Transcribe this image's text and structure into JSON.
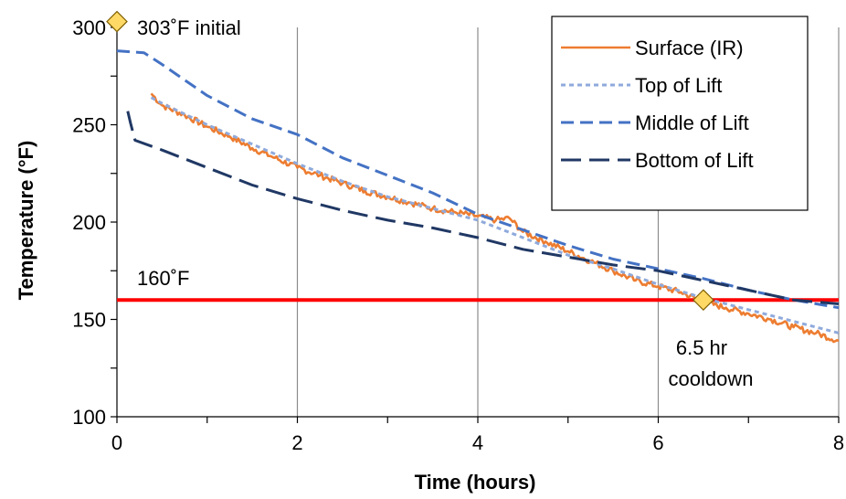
{
  "chart_data": {
    "type": "line",
    "title": "",
    "xlabel": "Time (hours)",
    "ylabel": "Temperature (°F)",
    "xlim": [
      0,
      8
    ],
    "ylim": [
      100,
      300
    ],
    "x_ticks": [
      "0",
      "2",
      "4",
      "6",
      "8"
    ],
    "y_ticks": [
      "100",
      "150",
      "200",
      "250",
      "300"
    ],
    "grid": "vertical",
    "legend_position": "top-right",
    "series": [
      {
        "name": "Surface (IR)",
        "color": "#ED7D31",
        "style": "solid-noisy",
        "points": [
          [
            0.38,
            266
          ],
          [
            0.5,
            260
          ],
          [
            0.75,
            255
          ],
          [
            1.0,
            249
          ],
          [
            1.25,
            244
          ],
          [
            1.5,
            238
          ],
          [
            1.75,
            233
          ],
          [
            2.0,
            228
          ],
          [
            2.25,
            224
          ],
          [
            2.5,
            220
          ],
          [
            2.75,
            216
          ],
          [
            3.0,
            213
          ],
          [
            3.25,
            210
          ],
          [
            3.5,
            207
          ],
          [
            3.75,
            205
          ],
          [
            4.0,
            203
          ],
          [
            4.2,
            201
          ],
          [
            4.35,
            202
          ],
          [
            4.5,
            195
          ],
          [
            4.75,
            190
          ],
          [
            5.0,
            185
          ],
          [
            5.25,
            180
          ],
          [
            5.5,
            175
          ],
          [
            5.75,
            170
          ],
          [
            6.0,
            167
          ],
          [
            6.25,
            164
          ],
          [
            6.5,
            159
          ],
          [
            6.75,
            156
          ],
          [
            7.0,
            153
          ],
          [
            7.25,
            150
          ],
          [
            7.5,
            146
          ],
          [
            7.75,
            143
          ],
          [
            8.0,
            139
          ]
        ]
      },
      {
        "name": "Top of Lift",
        "color": "#8FAADC",
        "style": "dotted",
        "points": [
          [
            0.38,
            264
          ],
          [
            0.5,
            261
          ],
          [
            1.0,
            250
          ],
          [
            1.5,
            240
          ],
          [
            2.0,
            230
          ],
          [
            2.5,
            221
          ],
          [
            3.0,
            213
          ],
          [
            3.5,
            207
          ],
          [
            4.0,
            201
          ],
          [
            4.5,
            192
          ],
          [
            5.0,
            183
          ],
          [
            5.5,
            176
          ],
          [
            6.0,
            168
          ],
          [
            6.5,
            161
          ],
          [
            7.0,
            155
          ],
          [
            7.5,
            149
          ],
          [
            8.0,
            143
          ]
        ]
      },
      {
        "name": "Middle of Lift",
        "color": "#4472C4",
        "style": "dashed",
        "points": [
          [
            0.0,
            288
          ],
          [
            0.3,
            287
          ],
          [
            0.5,
            281
          ],
          [
            1.0,
            265
          ],
          [
            1.5,
            253
          ],
          [
            2.0,
            245
          ],
          [
            2.5,
            233
          ],
          [
            3.0,
            224
          ],
          [
            3.5,
            215
          ],
          [
            4.0,
            204
          ],
          [
            4.5,
            196
          ],
          [
            5.0,
            188
          ],
          [
            5.5,
            181
          ],
          [
            6.0,
            176
          ],
          [
            6.5,
            171
          ],
          [
            7.0,
            165
          ],
          [
            7.5,
            160
          ],
          [
            8.0,
            156
          ]
        ]
      },
      {
        "name": "Bottom of Lift",
        "color": "#203864",
        "style": "long-dashed",
        "points": [
          [
            0.12,
            257
          ],
          [
            0.15,
            251
          ],
          [
            0.2,
            242
          ],
          [
            0.5,
            237
          ],
          [
            1.0,
            228
          ],
          [
            1.5,
            219
          ],
          [
            2.0,
            212
          ],
          [
            2.5,
            206
          ],
          [
            3.0,
            201
          ],
          [
            3.5,
            197
          ],
          [
            4.0,
            192
          ],
          [
            4.5,
            186
          ],
          [
            5.0,
            182
          ],
          [
            5.5,
            178
          ],
          [
            6.0,
            175
          ],
          [
            6.5,
            170
          ],
          [
            7.0,
            165
          ],
          [
            7.5,
            160
          ],
          [
            8.0,
            158
          ]
        ]
      }
    ],
    "reference_line": {
      "y": 160,
      "label": "160˚F",
      "color": "#FF0000"
    },
    "markers": [
      {
        "x": 0,
        "y": 303,
        "label": "303˚F initial",
        "color": "#FFD966"
      },
      {
        "x": 6.5,
        "y": 160,
        "label": [
          "6.5 hr",
          "cooldown"
        ],
        "color": "#FFD966"
      }
    ]
  }
}
